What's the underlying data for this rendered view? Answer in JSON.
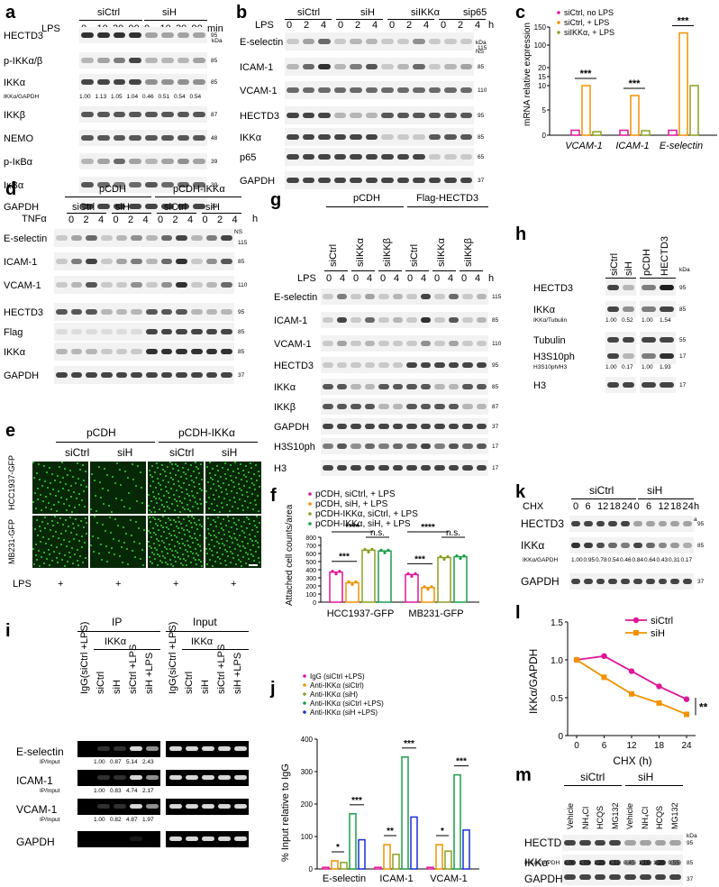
{
  "panel_letters": {
    "a": "a",
    "b": "b",
    "c": "c",
    "d": "d",
    "e": "e",
    "f": "f",
    "g": "g",
    "h": "h",
    "i": "i",
    "j": "j",
    "k": "k",
    "l": "l",
    "m": "m"
  },
  "common": {
    "kda": "kDa",
    "lps": "LPS",
    "gapdh": "GAPDH",
    "hectd3": "HECTD3",
    "ikka": "IKKα",
    "ns": "NS",
    "h": "h",
    "min": "min",
    "plus": "+"
  },
  "panel_a": {
    "groups": [
      "siCtrl",
      "siH"
    ],
    "lanes": [
      "0",
      "10",
      "30",
      "90",
      "0",
      "10",
      "30",
      "90"
    ],
    "unit": "min",
    "rows": [
      "HECTD3",
      "p-IKKα/β",
      "IKKα",
      "IKKβ",
      "NEMO",
      "p-IκBα",
      "IκBα",
      "GAPDH"
    ],
    "kda": [
      "95",
      "85",
      "85",
      "87",
      "48",
      "39",
      "39",
      "37"
    ],
    "quant_label": "IKKα/GAPDH",
    "quant": [
      "1.00",
      "1.13",
      "1.05",
      "1.04",
      "0.46",
      "0.51",
      "0.54",
      "0.54"
    ]
  },
  "panel_b": {
    "groups": [
      "siCtrl",
      "siH",
      "siIKKα",
      "sip65"
    ],
    "lanes": [
      "0",
      "2",
      "4",
      "0",
      "2",
      "4",
      "0",
      "2",
      "4",
      "0",
      "2",
      "4"
    ],
    "rows": [
      "E-selectin",
      "ICAM-1",
      "VCAM-1",
      "HECTD3",
      "IKKα",
      "p65",
      "GAPDH"
    ],
    "kda": [
      "115",
      "85",
      "110",
      "95",
      "85",
      "65",
      "37"
    ]
  },
  "panel_c": {
    "ylabel": "mRNA relative expression",
    "legend": [
      "siCtrl, no LPS",
      "siCtrl, + LPS",
      "siIKKα, + LPS"
    ],
    "colors": [
      "#e0169a",
      "#f39200",
      "#8aa121"
    ],
    "yticks": [
      "0",
      "1",
      "2",
      "3",
      "4",
      "5",
      "6",
      "7",
      "8",
      "9",
      "10",
      "15",
      "20",
      "100",
      "150"
    ]
  },
  "panel_d": {
    "groups": [
      "pCDH",
      "pCDH-IKKα"
    ],
    "subgroups": [
      "siCtrl",
      "siH",
      "siCtrl",
      "siH"
    ],
    "treatment": "TNFα",
    "lanes": [
      "0",
      "2",
      "4",
      "0",
      "2",
      "4",
      "0",
      "2",
      "4",
      "0",
      "2",
      "4"
    ],
    "rows": [
      "E-selectin",
      "ICAM-1",
      "VCAM-1",
      "HECTD3",
      "Flag",
      "IKKα",
      "GAPDH"
    ],
    "kda": [
      "115",
      "85",
      "110",
      "95",
      "85",
      "85",
      "37"
    ]
  },
  "panel_e": {
    "groups": [
      "pCDH",
      "pCDH-IKKα"
    ],
    "subgroups": [
      "siCtrl",
      "siH",
      "siCtrl",
      "siH"
    ],
    "rows": [
      "HCC1937-GFP",
      "MB231-GFP"
    ],
    "lps_signs": [
      "+",
      "+",
      "+",
      "+"
    ]
  },
  "panel_f": {
    "ylabel": "Attached cell counts/area",
    "legend": [
      "pCDH, siCtrl, + LPS",
      "pCDH, siH, + LPS",
      "pCDH-IKKα, siCtrl, + LPS",
      "pCDH-IKKα, siH, + LPS"
    ],
    "colors": [
      "#e0169a",
      "#f39200",
      "#8aa121",
      "#1a9e4a"
    ],
    "yticks": [
      "0",
      "100",
      "200",
      "300",
      "400",
      "500",
      "600",
      "700",
      "800"
    ],
    "sig": [
      "***",
      "****",
      "n.s.",
      "***",
      "****",
      "n.s."
    ]
  },
  "panel_g": {
    "groups": [
      "pCDH",
      "Flag-HECTD3"
    ],
    "subgroups": [
      "siCtrl",
      "siIKKα",
      "siIKKβ",
      "siCtrl",
      "siIKKα",
      "siIKKβ"
    ],
    "lanes": [
      "0",
      "4",
      "0",
      "4",
      "0",
      "4",
      "0",
      "4",
      "0",
      "4",
      "0",
      "4"
    ],
    "rows": [
      "E-selectin",
      "ICAM-1",
      "VCAM-1",
      "HECTD3",
      "IKKα",
      "IKKβ",
      "GAPDH",
      "H3S10ph",
      "H3"
    ],
    "kda": [
      "115",
      "85",
      "110",
      "95",
      "85",
      "87",
      "37",
      "17",
      "17"
    ]
  },
  "panel_h": {
    "lanes": [
      "siCtrl",
      "siH",
      "pCDH",
      "HECTD3"
    ],
    "rows": [
      "HECTD3",
      "IKKα",
      "Tubulin",
      "H3S10ph",
      "H3"
    ],
    "kda": [
      "95",
      "85",
      "55",
      "17",
      "17"
    ],
    "q1_label": "IKKα/Tubulin",
    "q1": [
      "1.00",
      "0.52",
      "1.00",
      "1.54"
    ],
    "q2_label": "H3S10ph/H3",
    "q2": [
      "1.00",
      "0.17",
      "1.00",
      "1.93"
    ]
  },
  "panel_i": {
    "ip": "IP",
    "input": "Input",
    "lanes": [
      "IgG(siCtrl +LPS)",
      "siCtrl",
      "siH",
      "siCtrl +LPS",
      "siH +LPS"
    ],
    "rows": [
      "E-selectin",
      "ICAM-1",
      "VCAM-1",
      "GAPDH"
    ],
    "ratio_label": "IP/Input",
    "ratios": [
      [
        "1.00",
        "0.87",
        "5.14",
        "2.43"
      ],
      [
        "1.00",
        "0.83",
        "4.74",
        "2.17"
      ],
      [
        "1.00",
        "0.82",
        "4.87",
        "1.97"
      ]
    ]
  },
  "panel_j": {
    "ylabel": "% Input relative to IgG",
    "legend": [
      "IgG (siCtrl +LPS)",
      "Anti-IKKα (siCtrl)",
      "Anti-IKKα (siH)",
      "Anti-IKKα (siCtrl +LPS)",
      "Anti-IKKα (siH +LPS)"
    ],
    "colors": [
      "#e0169a",
      "#f39200",
      "#8aa121",
      "#1a9e4a",
      "#1b2fd6"
    ],
    "yticks": [
      "0",
      "100",
      "200",
      "300",
      "400"
    ],
    "sig": [
      "*",
      "***",
      "**",
      "***",
      "*",
      "***"
    ],
    "genes": [
      "E-selectin",
      "ICAM-1",
      "VCAM-1"
    ]
  },
  "panel_k": {
    "treatment": "CHX",
    "groups": [
      "siCtrl",
      "siH"
    ],
    "lanes": [
      "0",
      "6",
      "12",
      "18",
      "24",
      "0",
      "6",
      "12",
      "18",
      "24"
    ],
    "rows": [
      "HECTD3",
      "IKKα",
      "GAPDH"
    ],
    "kda": [
      "95",
      "85",
      "37"
    ],
    "quant_label": "IKKα/GAPDH",
    "quant": [
      "1.00",
      "0.95",
      "0.78",
      "0.54",
      "0.46",
      "0.84",
      "0.64",
      "0.43",
      "0.31",
      "0.17"
    ]
  },
  "panel_m": {
    "groups": [
      "siCtrl",
      "siH"
    ],
    "lanes": [
      "Vehicle",
      "NH₄Cl",
      "HCQS",
      "MG132",
      "Vehicle",
      "NH₄Cl",
      "HCQS",
      "MG132"
    ],
    "rows": [
      "HECTD3",
      "IKKα",
      "GAPDH"
    ],
    "kda": [
      "95",
      "85",
      "37"
    ],
    "quant_label": "IKKα/GAPDH",
    "quant": [
      "1.00",
      "1.09",
      "1.21",
      "1.11",
      "0.45",
      "1.16",
      "1.20",
      "0.55"
    ]
  },
  "chart_data": [
    {
      "type": "bar",
      "panel": "c",
      "categories": [
        "VCAM-1",
        "ICAM-1",
        "E-selectin"
      ],
      "ylabel": "mRNA relative expression",
      "series": [
        {
          "name": "siCtrl, no LPS",
          "values": [
            1,
            1,
            1
          ]
        },
        {
          "name": "siCtrl, + LPS",
          "values": [
            10,
            8,
            130
          ]
        },
        {
          "name": "siIKKα, + LPS",
          "values": [
            0.7,
            0.9,
            10
          ]
        }
      ]
    },
    {
      "type": "bar",
      "panel": "f",
      "categories": [
        "HCC1937-GFP",
        "MB231-GFP"
      ],
      "ylabel": "Attached cell counts/area",
      "ylim": [
        0,
        800
      ],
      "series": [
        {
          "name": "pCDH, siCtrl, + LPS",
          "values": [
            370,
            340
          ]
        },
        {
          "name": "pCDH, siH, + LPS",
          "values": [
            240,
            180
          ]
        },
        {
          "name": "pCDH-IKKα, siCtrl, + LPS",
          "values": [
            640,
            550
          ]
        },
        {
          "name": "pCDH-IKKα, siH, + LPS",
          "values": [
            630,
            560
          ]
        }
      ]
    },
    {
      "type": "bar",
      "panel": "j",
      "categories": [
        "E-selectin",
        "ICAM-1",
        "VCAM-1"
      ],
      "ylabel": "% Input relative to IgG",
      "ylim": [
        0,
        400
      ],
      "series": [
        {
          "name": "IgG (siCtrl +LPS)",
          "values": [
            5,
            5,
            5
          ]
        },
        {
          "name": "Anti-IKKα (siCtrl)",
          "values": [
            25,
            75,
            75
          ]
        },
        {
          "name": "Anti-IKKα (siH)",
          "values": [
            20,
            45,
            55
          ]
        },
        {
          "name": "Anti-IKKα (siCtrl +LPS)",
          "values": [
            170,
            345,
            290
          ]
        },
        {
          "name": "Anti-IKKα (siH +LPS)",
          "values": [
            90,
            160,
            120
          ]
        }
      ]
    },
    {
      "type": "line",
      "panel": "l",
      "xlabel": "CHX (h)",
      "ylabel": "IKKα/GAPDH",
      "x": [
        0,
        6,
        12,
        18,
        24
      ],
      "xticks": [
        "0",
        "6",
        "12",
        "18",
        "24"
      ],
      "yticks": [
        "0",
        "0.5",
        "1.0",
        "1.5"
      ],
      "ylim": [
        0,
        1.5
      ],
      "series": [
        {
          "name": "siCtrl",
          "values": [
            1.0,
            1.05,
            0.85,
            0.65,
            0.48
          ]
        },
        {
          "name": "siH",
          "values": [
            1.0,
            0.77,
            0.55,
            0.43,
            0.28
          ]
        }
      ],
      "annotation": "**",
      "colors": [
        "#e0169a",
        "#f39200"
      ]
    }
  ]
}
